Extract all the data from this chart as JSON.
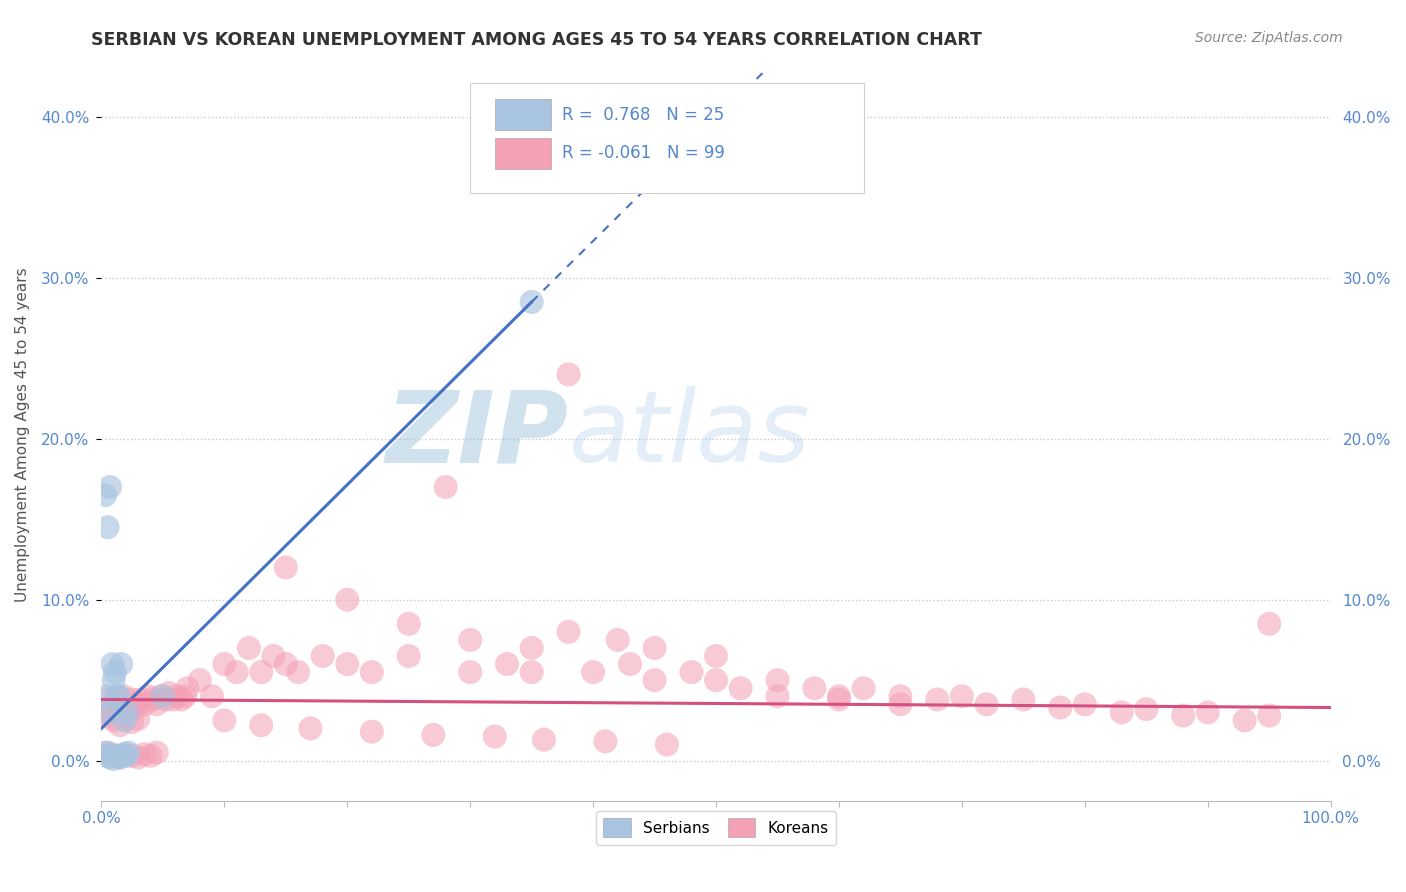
{
  "title": "SERBIAN VS KOREAN UNEMPLOYMENT AMONG AGES 45 TO 54 YEARS CORRELATION CHART",
  "source_text": "Source: ZipAtlas.com",
  "ylabel": "Unemployment Among Ages 45 to 54 years",
  "xlim": [
    0.0,
    1.0
  ],
  "ylim": [
    -0.025,
    0.43
  ],
  "xticks": [
    0.0,
    0.1,
    0.2,
    0.3,
    0.4,
    0.5,
    0.6,
    0.7,
    0.8,
    0.9,
    1.0
  ],
  "yticks": [
    0.0,
    0.1,
    0.2,
    0.3,
    0.4
  ],
  "ytick_labels": [
    "0.0%",
    "10.0%",
    "20.0%",
    "30.0%",
    "40.0%"
  ],
  "serbian_R": 0.768,
  "serbian_N": 25,
  "korean_R": -0.061,
  "korean_N": 99,
  "serbian_color": "#a8c4e0",
  "korean_color": "#f4a0b5",
  "serbian_line_color": "#4472c4",
  "korean_line_color": "#d45080",
  "background_color": "#ffffff",
  "grid_color": "#c8c8d4",
  "serb_x": [
    0.003,
    0.005,
    0.007,
    0.008,
    0.01,
    0.012,
    0.015,
    0.018,
    0.02,
    0.022,
    0.003,
    0.005,
    0.007,
    0.009,
    0.011,
    0.013,
    0.016,
    0.019,
    0.021,
    0.004,
    0.006,
    0.01,
    0.014,
    0.05,
    0.35
  ],
  "serb_y": [
    0.005,
    0.003,
    0.002,
    0.004,
    0.001,
    0.003,
    0.002,
    0.004,
    0.003,
    0.005,
    0.165,
    0.145,
    0.17,
    0.06,
    0.055,
    0.04,
    0.06,
    0.025,
    0.03,
    0.04,
    0.03,
    0.05,
    0.04,
    0.04,
    0.285
  ],
  "kor_x": [
    0.005,
    0.008,
    0.012,
    0.015,
    0.018,
    0.022,
    0.025,
    0.028,
    0.032,
    0.035,
    0.038,
    0.042,
    0.045,
    0.048,
    0.052,
    0.055,
    0.058,
    0.062,
    0.065,
    0.068,
    0.005,
    0.01,
    0.015,
    0.02,
    0.025,
    0.03,
    0.035,
    0.04,
    0.045,
    0.005,
    0.01,
    0.015,
    0.02,
    0.025,
    0.03,
    0.07,
    0.08,
    0.09,
    0.1,
    0.11,
    0.12,
    0.13,
    0.14,
    0.15,
    0.16,
    0.18,
    0.2,
    0.22,
    0.25,
    0.28,
    0.3,
    0.33,
    0.35,
    0.38,
    0.4,
    0.43,
    0.45,
    0.48,
    0.5,
    0.52,
    0.55,
    0.58,
    0.6,
    0.62,
    0.65,
    0.68,
    0.7,
    0.72,
    0.75,
    0.78,
    0.8,
    0.83,
    0.85,
    0.88,
    0.9,
    0.93,
    0.95,
    0.15,
    0.2,
    0.25,
    0.3,
    0.35,
    0.38,
    0.42,
    0.45,
    0.5,
    0.1,
    0.13,
    0.17,
    0.22,
    0.27,
    0.32,
    0.36,
    0.41,
    0.46,
    0.55,
    0.6,
    0.65,
    0.95
  ],
  "kor_y": [
    0.038,
    0.03,
    0.04,
    0.035,
    0.04,
    0.032,
    0.038,
    0.033,
    0.038,
    0.035,
    0.04,
    0.038,
    0.035,
    0.04,
    0.038,
    0.042,
    0.038,
    0.04,
    0.038,
    0.04,
    0.005,
    0.003,
    0.002,
    0.004,
    0.003,
    0.002,
    0.004,
    0.003,
    0.005,
    0.028,
    0.025,
    0.022,
    0.027,
    0.024,
    0.026,
    0.045,
    0.05,
    0.04,
    0.06,
    0.055,
    0.07,
    0.055,
    0.065,
    0.06,
    0.055,
    0.065,
    0.06,
    0.055,
    0.065,
    0.17,
    0.055,
    0.06,
    0.055,
    0.24,
    0.055,
    0.06,
    0.05,
    0.055,
    0.05,
    0.045,
    0.05,
    0.045,
    0.04,
    0.045,
    0.04,
    0.038,
    0.04,
    0.035,
    0.038,
    0.033,
    0.035,
    0.03,
    0.032,
    0.028,
    0.03,
    0.025,
    0.028,
    0.12,
    0.1,
    0.085,
    0.075,
    0.07,
    0.08,
    0.075,
    0.07,
    0.065,
    0.025,
    0.022,
    0.02,
    0.018,
    0.016,
    0.015,
    0.013,
    0.012,
    0.01,
    0.04,
    0.038,
    0.035,
    0.085
  ]
}
